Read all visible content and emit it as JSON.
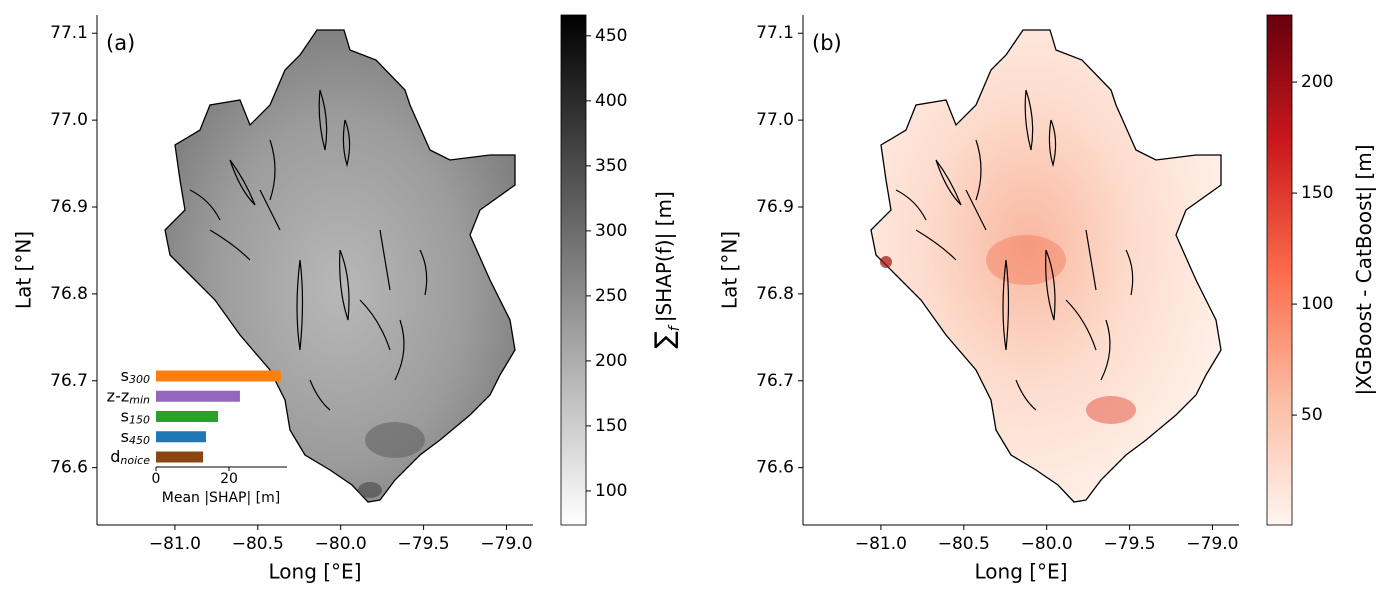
{
  "chart_data": [
    {
      "type": "map",
      "panel_label": "(a)",
      "xlabel": "Long [°E]",
      "ylabel": "Lat [°N]",
      "xlim": [
        -81.47,
        -78.84
      ],
      "ylim": [
        76.534,
        77.121
      ],
      "xticks": [
        {
          "value": -81,
          "label": "−81.0"
        },
        {
          "value": -80.5,
          "label": "−80.5"
        },
        {
          "value": -80,
          "label": "−80.0"
        },
        {
          "value": -79.5,
          "label": "−79.5"
        },
        {
          "value": -79,
          "label": "−79.0"
        }
      ],
      "yticks": [
        76.6,
        76.7,
        76.8,
        76.9,
        {
          "value": 77,
          "label": "77.0"
        },
        77.1
      ],
      "colorbar": {
        "label_symbol": "∑",
        "label_sub": "f",
        "label": "|SHAP(f)| [m]",
        "lim": [
          73.8,
          466
        ],
        "ticks": [
          100,
          150,
          200,
          250,
          300,
          350,
          400,
          450
        ],
        "colors": [
          "#ffffff",
          "#000000"
        ]
      }
    },
    {
      "type": "bar",
      "orientation": "horizontal",
      "xlabel": "Mean |SHAP| [m]",
      "categories": [
        [
          "s",
          "300"
        ],
        [
          "z-z",
          "min"
        ],
        [
          "s",
          "150"
        ],
        [
          "s",
          "450"
        ],
        [
          "d",
          "noice"
        ]
      ],
      "values": [
        34.2,
        23,
        17,
        13.7,
        12.9
      ],
      "colors": [
        "#ff7f0e",
        "#9467bd",
        "#2ca02c",
        "#1f77b4",
        "#8b4513"
      ],
      "xlim": [
        0,
        35.9
      ],
      "xticks": [
        0,
        20
      ]
    },
    {
      "type": "map",
      "panel_label": "(b)",
      "xlabel": "Long [°E]",
      "ylabel": "Lat [°N]",
      "xlim": [
        -81.47,
        -78.84
      ],
      "ylim": [
        76.534,
        77.121
      ],
      "xticks": [
        {
          "value": -81,
          "label": "−81.0"
        },
        {
          "value": -80.5,
          "label": "−80.5"
        },
        {
          "value": -80,
          "label": "−80.0"
        },
        {
          "value": -79.5,
          "label": "−79.5"
        },
        {
          "value": -79,
          "label": "−79.0"
        }
      ],
      "yticks": [
        76.6,
        76.7,
        76.8,
        76.9,
        {
          "value": 77,
          "label": "77.0"
        },
        77.1
      ],
      "colorbar": {
        "label": "|XGBoost - CatBoost| [m]",
        "lim": [
          0.5,
          230.2
        ],
        "ticks": [
          50,
          100,
          150,
          200
        ],
        "colors": [
          "#fff5f0",
          "#fcbba1",
          "#fb6a4a",
          "#cb181d",
          "#67000d"
        ]
      }
    }
  ]
}
